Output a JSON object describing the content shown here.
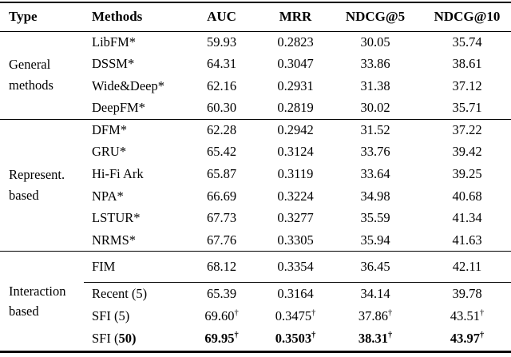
{
  "page": {
    "background": "#ffffff",
    "text_color": "#000000"
  },
  "table": {
    "columns": [
      {
        "label": "Type"
      },
      {
        "label": "Methods"
      },
      {
        "label": "AUC"
      },
      {
        "label": "MRR"
      },
      {
        "label": "NDCG@5"
      },
      {
        "label": "NDCG@10"
      }
    ],
    "dagger_symbol": "†",
    "groups": [
      {
        "type": "General methods",
        "rows": [
          {
            "method": "LibFM*",
            "values": [
              "59.93",
              "0.2823",
              "30.05",
              "35.74"
            ],
            "dagger": false,
            "bold": false
          },
          {
            "method": "DSSM*",
            "values": [
              "64.31",
              "0.3047",
              "33.86",
              "38.61"
            ],
            "dagger": false,
            "bold": false
          },
          {
            "method": "Wide&Deep*",
            "values": [
              "62.16",
              "0.2931",
              "31.38",
              "37.12"
            ],
            "dagger": false,
            "bold": false
          },
          {
            "method": "DeepFM*",
            "values": [
              "60.30",
              "0.2819",
              "30.02",
              "35.71"
            ],
            "dagger": false,
            "bold": false
          }
        ]
      },
      {
        "type": "Represent. based",
        "rows": [
          {
            "method": "DFM*",
            "values": [
              "62.28",
              "0.2942",
              "31.52",
              "37.22"
            ],
            "dagger": false,
            "bold": false
          },
          {
            "method": "GRU*",
            "values": [
              "65.42",
              "0.3124",
              "33.76",
              "39.42"
            ],
            "dagger": false,
            "bold": false
          },
          {
            "method": "Hi-Fi Ark",
            "values": [
              "65.87",
              "0.3119",
              "33.64",
              "39.25"
            ],
            "dagger": false,
            "bold": false
          },
          {
            "method": "NPA*",
            "values": [
              "66.69",
              "0.3224",
              "34.98",
              "40.68"
            ],
            "dagger": false,
            "bold": false
          },
          {
            "method": "LSTUR*",
            "values": [
              "67.73",
              "0.3277",
              "35.59",
              "41.34"
            ],
            "dagger": false,
            "bold": false
          },
          {
            "method": "NRMS*",
            "values": [
              "67.76",
              "0.3305",
              "35.94",
              "41.63"
            ],
            "dagger": false,
            "bold": false
          }
        ]
      },
      {
        "type": "Interaction based",
        "rows": [
          {
            "method": "FIM",
            "values": [
              "68.12",
              "0.3354",
              "36.45",
              "42.11"
            ],
            "dagger": false,
            "bold": false,
            "separator_after": true
          },
          {
            "method": "Recent (5)",
            "values": [
              "65.39",
              "0.3164",
              "34.14",
              "39.78"
            ],
            "dagger": false,
            "bold": false
          },
          {
            "method": "SFI (5)",
            "values": [
              "69.60",
              "0.3475",
              "37.86",
              "43.51"
            ],
            "dagger": true,
            "bold": false
          },
          {
            "method": "SFI (50)",
            "values": [
              "69.95",
              "0.3503",
              "38.31",
              "43.97"
            ],
            "dagger": true,
            "bold": true,
            "method_bold_substring": "50)"
          }
        ]
      }
    ]
  }
}
